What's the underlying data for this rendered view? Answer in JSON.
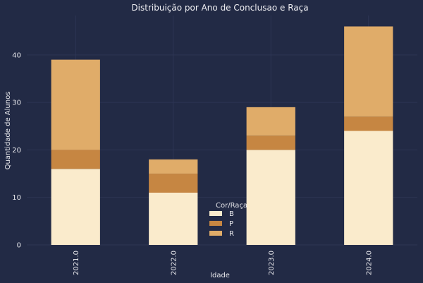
{
  "chart_data": {
    "type": "bar",
    "stacked": true,
    "title": "Distribuição por Ano de Conclusao e Raça",
    "xlabel": "Idade",
    "ylabel": "Quantidade de Alunos",
    "categories": [
      "2021.0",
      "2022.0",
      "2023.0",
      "2024.0"
    ],
    "series": [
      {
        "name": "B",
        "values": [
          16,
          11,
          20,
          24
        ],
        "color": "#faebcc"
      },
      {
        "name": "P",
        "values": [
          4,
          4,
          3,
          3
        ],
        "color": "#c68642"
      },
      {
        "name": "R",
        "values": [
          19,
          3,
          6,
          19
        ],
        "color": "#e0ac69"
      }
    ],
    "ylim": [
      0,
      48.3
    ],
    "yticks": [
      0,
      10,
      20,
      30,
      40
    ],
    "grid": true,
    "legend": {
      "title": "Cor/Raça",
      "placement": "bottom-center"
    },
    "colors": {
      "background": "#222a45",
      "grid": "#2d3554",
      "text": "#e8e8ec"
    }
  }
}
